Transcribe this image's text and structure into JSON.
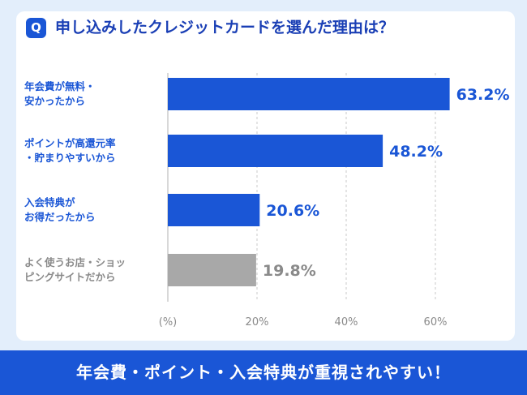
{
  "question_badge": "Q",
  "title": "申し込みしたクレジットカードを選んだ理由は？",
  "footer_text": "年会費・ポイント・入会特典が重視されやすい！",
  "colors": {
    "accent": "#1a56d6",
    "title": "#1a3fb5",
    "gray_bar": "#a8a8a8",
    "gray_text": "#8a8a8a"
  },
  "chart_data": {
    "type": "bar",
    "orientation": "horizontal",
    "categories": [
      "年会費が無料・\n安かったから",
      "ポイントが高還元率\n・貯まりやすいから",
      "入会特典が\nお得だったから",
      "よく使うお店・ショッ\nピングサイトだから"
    ],
    "values": [
      63.2,
      48.2,
      20.6,
      19.8
    ],
    "value_labels": [
      "63.2%",
      "48.2%",
      "20.6%",
      "19.8%"
    ],
    "highlight": [
      true,
      true,
      true,
      false
    ],
    "x_ticks": [
      {
        "value": 0,
        "label": "(%)"
      },
      {
        "value": 20,
        "label": "20%"
      },
      {
        "value": 40,
        "label": "40%"
      },
      {
        "value": 60,
        "label": "60%"
      }
    ],
    "xlim": [
      0,
      65
    ],
    "grid": "vertical dashed"
  }
}
